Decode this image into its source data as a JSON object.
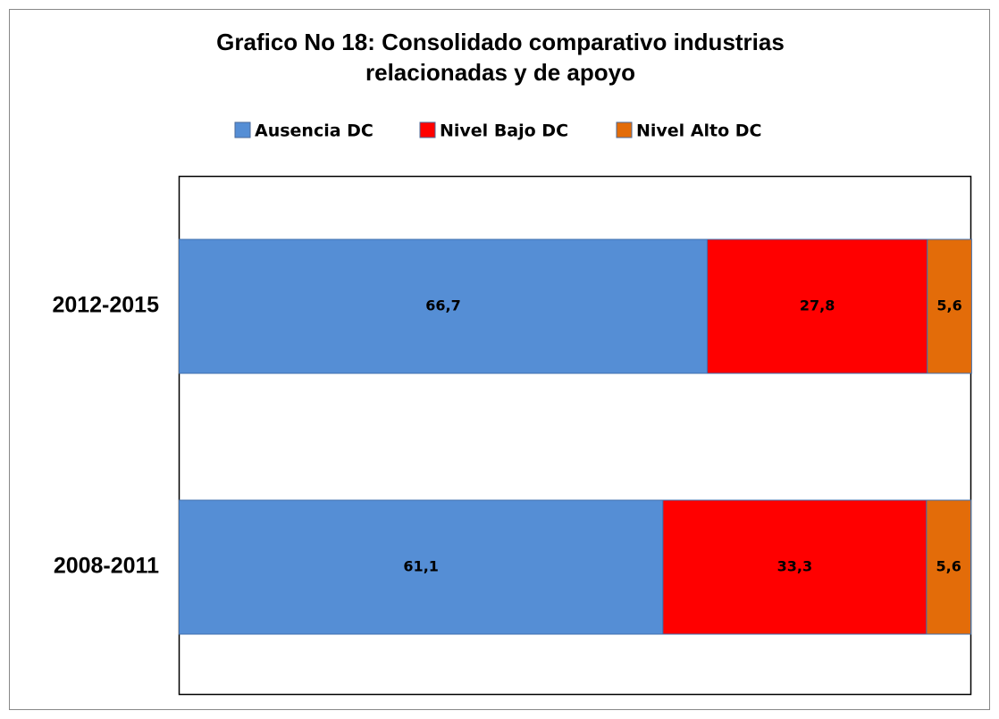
{
  "chart_data": {
    "type": "stacked_bar_horizontal",
    "title": [
      "Grafico No 18: Consolidado comparativo industrias",
      "relacionadas y de apoyo"
    ],
    "categories": [
      "2012-2015",
      "2008-2011"
    ],
    "series": [
      {
        "name": "Ausencia DC",
        "color": "#558ed5",
        "values": [
          66.7,
          61.1
        ],
        "value_labels": [
          "66,7",
          "61,1"
        ]
      },
      {
        "name": "Nivel Bajo DC",
        "color": "#ff0000",
        "values": [
          27.8,
          33.3
        ],
        "value_labels": [
          "27,8",
          "33,3"
        ]
      },
      {
        "name": "Nivel Alto DC",
        "color": "#e36c09",
        "values": [
          5.6,
          5.6
        ],
        "value_labels": [
          "5,6",
          "5,6"
        ]
      }
    ],
    "xlim": [
      0,
      100
    ],
    "legend": "top"
  }
}
